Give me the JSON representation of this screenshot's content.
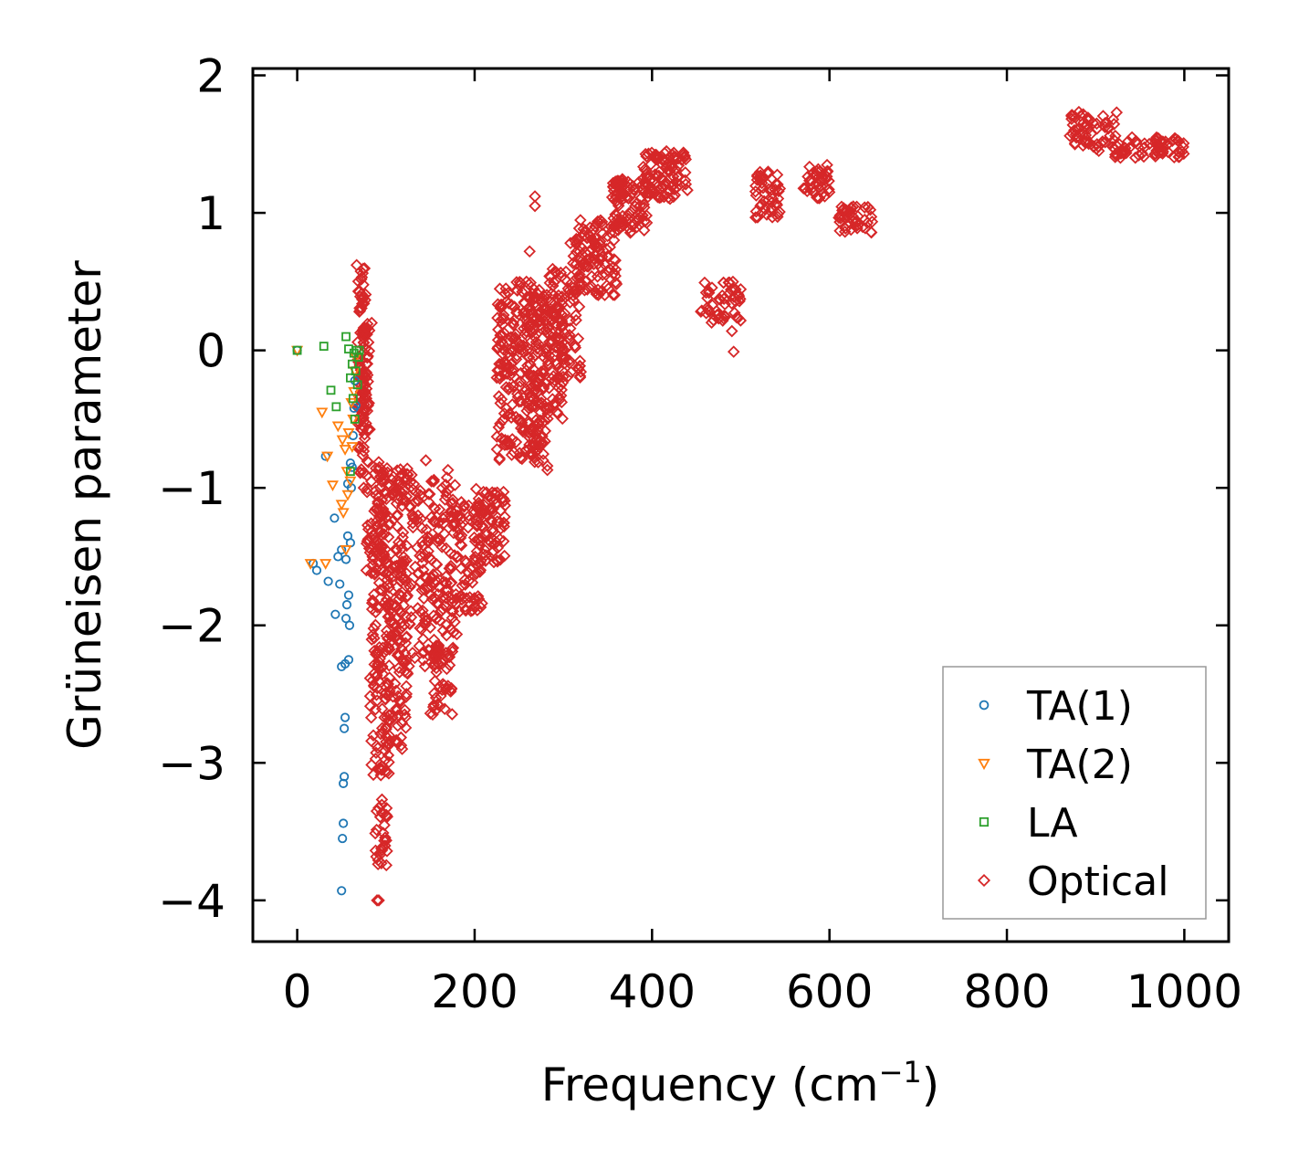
{
  "chart_data": {
    "type": "scatter",
    "xlabel": "Frequency (cm",
    "xlabel_sup": "−1",
    "xlabel_end": ")",
    "ylabel": "Grüneisen parameter",
    "xlim": [
      -50,
      1050
    ],
    "ylim": [
      -4.3,
      2.05
    ],
    "xticks": [
      0,
      200,
      400,
      600,
      800,
      1000
    ],
    "xtick_labels": [
      "0",
      "200",
      "400",
      "600",
      "800",
      "1000"
    ],
    "yticks": [
      2,
      1,
      0,
      -1,
      -2,
      -3,
      -4
    ],
    "ytick_labels": [
      "2",
      "1",
      "0",
      "−1",
      "−2",
      "−3",
      "−4"
    ],
    "legend_position": "bottom-right",
    "series": [
      {
        "name": "TA(1)",
        "marker": "circle",
        "color": "#1f77b4",
        "points": [
          [
            0,
            0
          ],
          [
            18,
            -1.55
          ],
          [
            22,
            -1.6
          ],
          [
            32,
            -0.77
          ],
          [
            35,
            -1.68
          ],
          [
            42,
            -1.22
          ],
          [
            43,
            -1.92
          ],
          [
            46,
            -1.5
          ],
          [
            48,
            -1.7
          ],
          [
            50,
            -1.45
          ],
          [
            50,
            -2.3
          ],
          [
            50,
            -3.93
          ],
          [
            51,
            -3.55
          ],
          [
            52,
            -3.44
          ],
          [
            52,
            -3.15
          ],
          [
            53,
            -3.1
          ],
          [
            53,
            -2.75
          ],
          [
            54,
            -2.67
          ],
          [
            54,
            -2.28
          ],
          [
            55,
            -1.95
          ],
          [
            55,
            -1.52
          ],
          [
            56,
            -1.85
          ],
          [
            57,
            -1.35
          ],
          [
            57,
            -0.97
          ],
          [
            58,
            -2.25
          ],
          [
            58,
            -1.78
          ],
          [
            59,
            -2.0
          ],
          [
            60,
            -1.4
          ],
          [
            60,
            -0.82
          ],
          [
            61,
            -1.0
          ],
          [
            62,
            -0.85
          ],
          [
            63,
            -0.62
          ],
          [
            64,
            -0.42
          ],
          [
            65,
            -0.22
          ],
          [
            66,
            -0.4
          ]
        ]
      },
      {
        "name": "TA(2)",
        "marker": "triangle",
        "color": "#ff7f0e",
        "points": [
          [
            0,
            0
          ],
          [
            15,
            -1.55
          ],
          [
            28,
            -0.45
          ],
          [
            32,
            -1.55
          ],
          [
            34,
            -0.77
          ],
          [
            40,
            -0.98
          ],
          [
            46,
            -0.55
          ],
          [
            50,
            -1.12
          ],
          [
            51,
            -0.65
          ],
          [
            52,
            -1.18
          ],
          [
            54,
            -0.72
          ],
          [
            55,
            -1.45
          ],
          [
            56,
            -0.88
          ],
          [
            57,
            -1.05
          ],
          [
            58,
            -0.6
          ],
          [
            60,
            -0.95
          ],
          [
            61,
            -0.38
          ],
          [
            62,
            -0.7
          ],
          [
            63,
            -0.5
          ],
          [
            64,
            -0.3
          ],
          [
            65,
            -0.15
          ],
          [
            66,
            -0.05
          ]
        ]
      },
      {
        "name": "LA",
        "marker": "square",
        "color": "#2ca02c",
        "points": [
          [
            0,
            0
          ],
          [
            30,
            0.03
          ],
          [
            38,
            -0.29
          ],
          [
            44,
            -0.41
          ],
          [
            55,
            0.1
          ],
          [
            58,
            0.01
          ],
          [
            60,
            -0.2
          ],
          [
            62,
            -0.1
          ],
          [
            63,
            -0.35
          ],
          [
            64,
            -0.02
          ],
          [
            65,
            -0.5
          ],
          [
            66,
            -0.15
          ],
          [
            67,
            0.0
          ],
          [
            68,
            -0.25
          ],
          [
            69,
            -0.05
          ],
          [
            70,
            0.0
          ],
          [
            60,
            -0.88
          ]
        ]
      },
      {
        "name": "Optical",
        "marker": "diamond",
        "color": "#d62728",
        "points": [],
        "clusters": [
          {
            "x": [
              68,
              78
            ],
            "y": [
              -0.9,
              0.6
            ],
            "n": 90
          },
          {
            "x": [
              72,
              82
            ],
            "y": [
              -0.6,
              0.2
            ],
            "n": 40
          },
          {
            "x": [
              78,
              100
            ],
            "y": [
              -1.5,
              -0.8
            ],
            "n": 60
          },
          {
            "x": [
              82,
              105
            ],
            "y": [
              -3.1,
              -1.2
            ],
            "n": 140
          },
          {
            "x": [
              88,
              102
            ],
            "y": [
              -3.75,
              -3.25
            ],
            "n": 30
          },
          {
            "x": [
              100,
              125
            ],
            "y": [
              -2.9,
              -1.5
            ],
            "n": 80
          },
          {
            "x": [
              95,
              125
            ],
            "y": [
              -1.1,
              -0.85
            ],
            "n": 30
          },
          {
            "x": [
              110,
              180
            ],
            "y": [
              -2.3,
              -0.9
            ],
            "n": 260
          },
          {
            "x": [
              150,
              175
            ],
            "y": [
              -2.65,
              -2.1
            ],
            "n": 40
          },
          {
            "x": [
              180,
              210
            ],
            "y": [
              -1.9,
              -1.1
            ],
            "n": 70
          },
          {
            "x": [
              200,
              235
            ],
            "y": [
              -1.55,
              -1.0
            ],
            "n": 80
          },
          {
            "x": [
              225,
              275
            ],
            "y": [
              -0.8,
              0.5
            ],
            "n": 220
          },
          {
            "x": [
              255,
              300
            ],
            "y": [
              -0.5,
              0.4
            ],
            "n": 130
          },
          {
            "x": [
              260,
              280
            ],
            "y": [
              -0.85,
              -0.5
            ],
            "n": 25
          },
          {
            "x": [
              280,
              320
            ],
            "y": [
              -0.2,
              0.6
            ],
            "n": 90
          },
          {
            "x": [
              310,
              360
            ],
            "y": [
              0.4,
              0.95
            ],
            "n": 110
          },
          {
            "x": [
              355,
              395
            ],
            "y": [
              0.85,
              1.25
            ],
            "n": 90
          },
          {
            "x": [
              390,
              440
            ],
            "y": [
              1.1,
              1.45
            ],
            "n": 100
          },
          {
            "x": [
              455,
              500
            ],
            "y": [
              0.2,
              0.5
            ],
            "n": 50
          },
          {
            "x": [
              515,
              545
            ],
            "y": [
              0.95,
              1.3
            ],
            "n": 45
          },
          {
            "x": [
              570,
              600
            ],
            "y": [
              1.1,
              1.35
            ],
            "n": 40
          },
          {
            "x": [
              610,
              650
            ],
            "y": [
              0.85,
              1.05
            ],
            "n": 45
          },
          {
            "x": [
              870,
              925
            ],
            "y": [
              1.45,
              1.75
            ],
            "n": 60
          },
          {
            "x": [
              920,
              1000
            ],
            "y": [
              1.4,
              1.55
            ],
            "n": 70
          }
        ],
        "extra_points": [
          [
            67,
            0.62
          ],
          [
            268,
            1.12
          ],
          [
            268,
            1.05
          ],
          [
            262,
            0.72
          ],
          [
            308,
            0.78
          ],
          [
            348,
            0.55
          ],
          [
            492,
            -0.01
          ],
          [
            490,
            0.14
          ],
          [
            597,
            1.3
          ],
          [
            282,
            -0.87
          ],
          [
            282,
            -0.84
          ],
          [
            170,
            -0.87
          ],
          [
            145,
            -0.8
          ],
          [
            90,
            -4.0
          ],
          [
            92,
            -4.0
          ],
          [
            97,
            -2.78
          ],
          [
            112,
            -2.85
          ],
          [
            115,
            -2.55
          ],
          [
            85,
            -2.4
          ],
          [
            130,
            -2.2
          ],
          [
            142,
            -2.1
          ],
          [
            78,
            -1.6
          ],
          [
            75,
            -1.0
          ],
          [
            80,
            -0.4
          ],
          [
            84,
            0.2
          ]
        ]
      }
    ]
  }
}
